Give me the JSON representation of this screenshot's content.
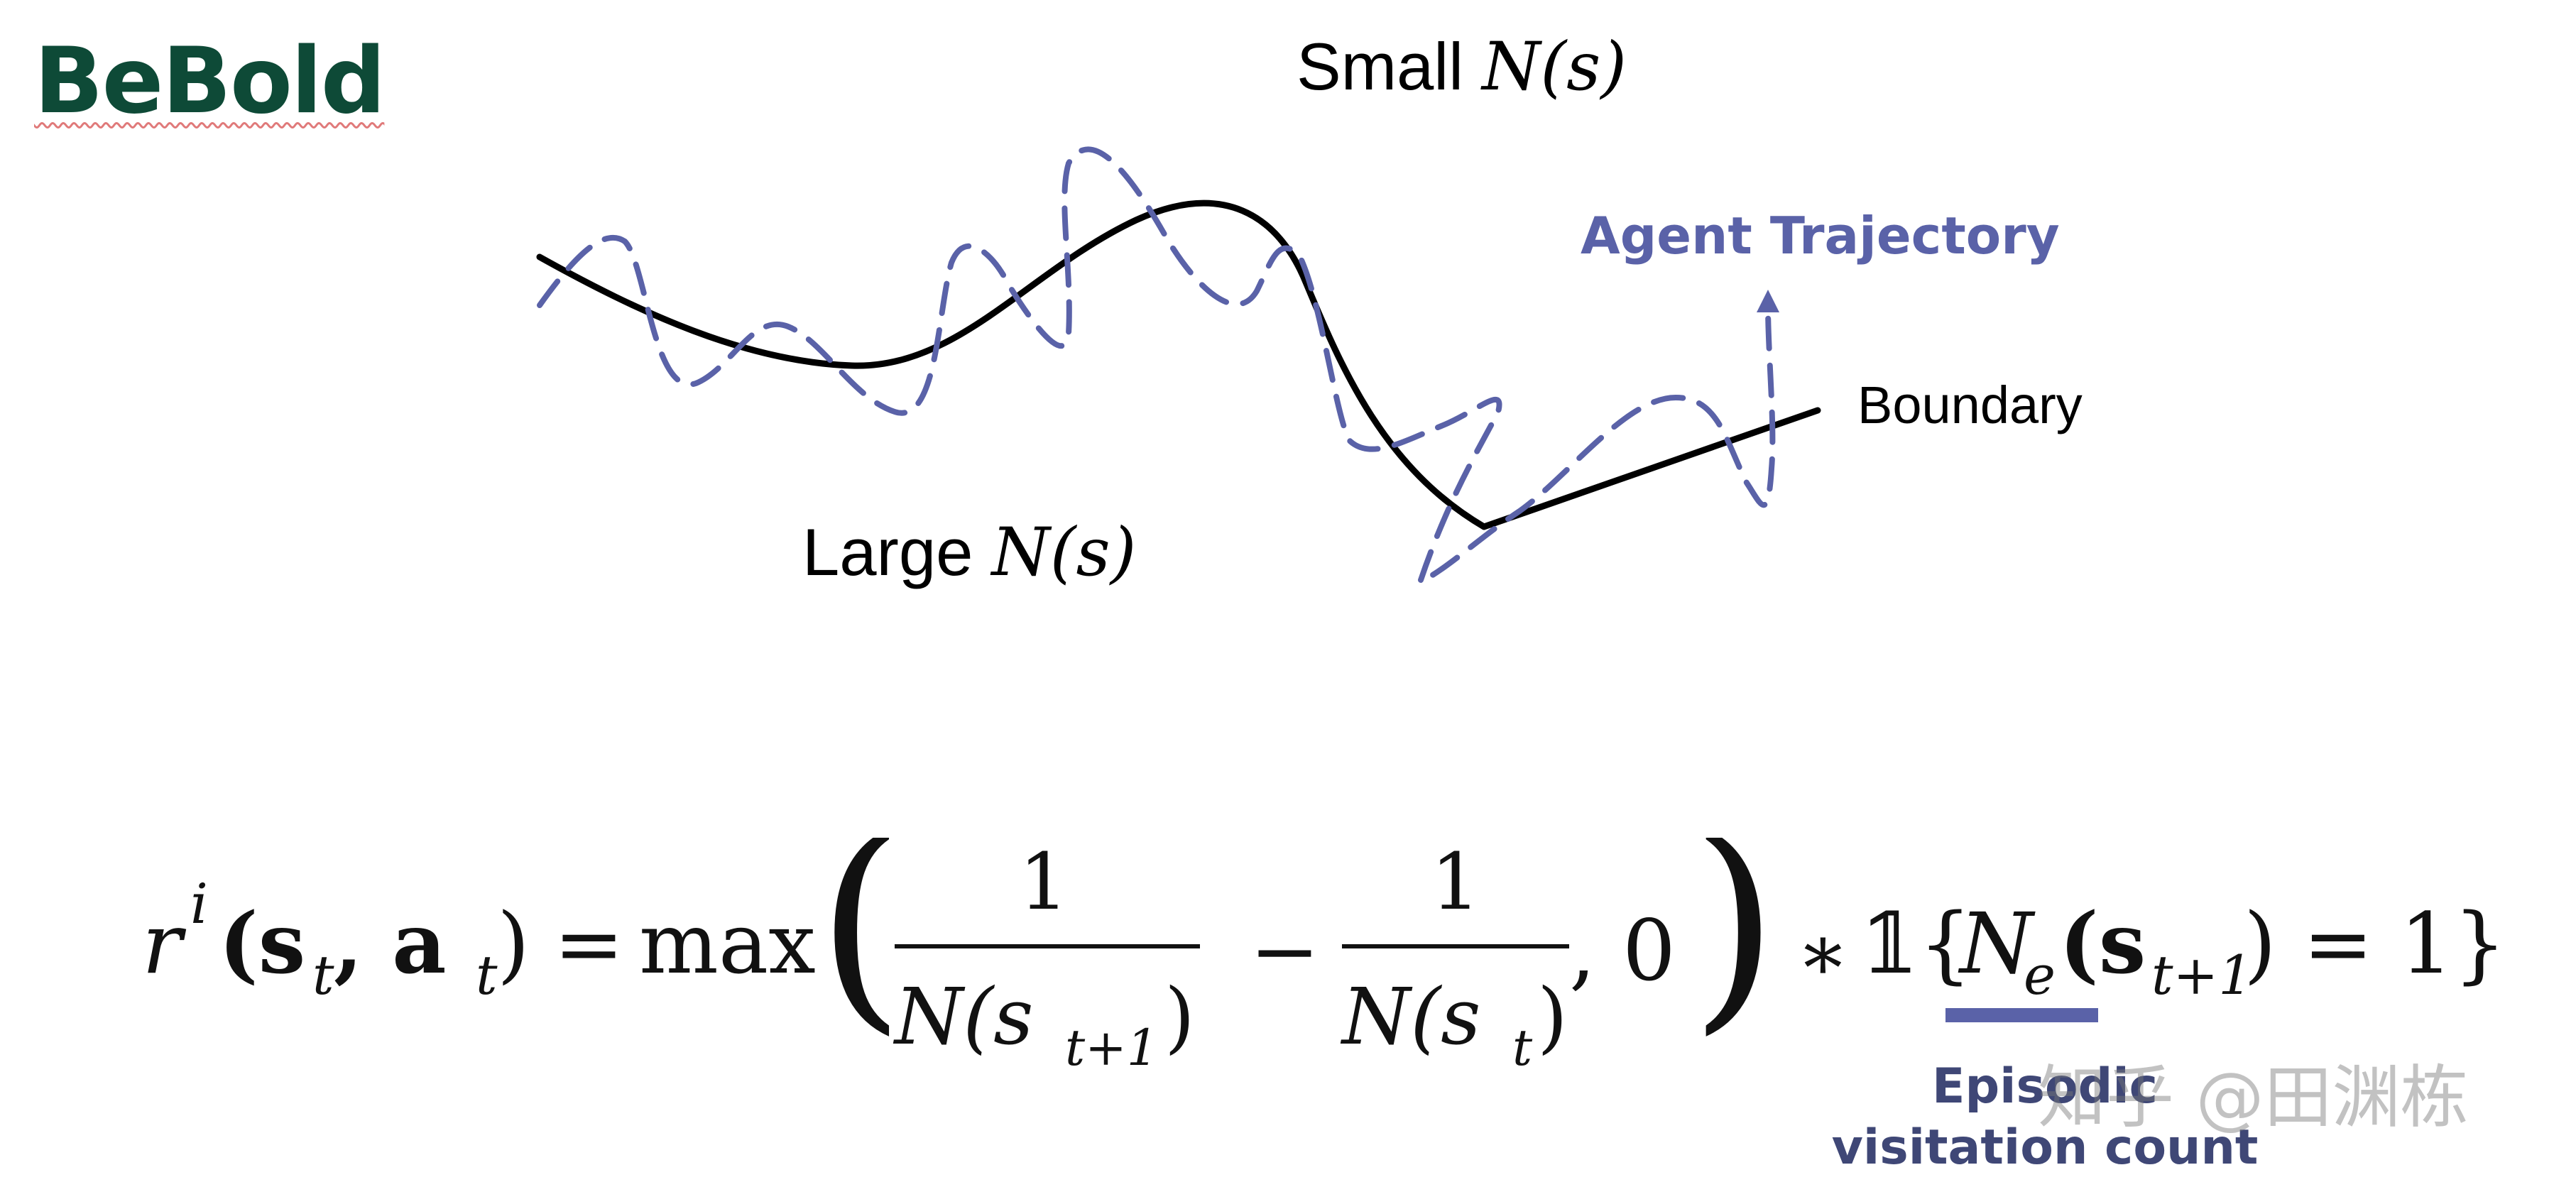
{
  "title": "BeBold",
  "labels": {
    "small_prefix": "Small ",
    "small_math": "N(s)",
    "large_prefix": "Large ",
    "large_math": "N(s)",
    "agent_trajectory": "Agent Trajectory",
    "boundary": "Boundary"
  },
  "formula": {
    "r": "r",
    "r_sup": "i",
    "lhs_args": "(s",
    "lhs_t": "t",
    "lhs_comma": ", a",
    "lhs_t2": "t",
    "lhs_close": ")",
    "equals": "=",
    "max": "max",
    "frac1_num": "1",
    "frac1_den": "N(s",
    "frac1_den_sub": "t+1",
    "frac1_den_close": ")",
    "minus": "−",
    "frac2_num": "1",
    "frac2_den": "N(s",
    "frac2_den_sub": "t",
    "frac2_den_close": ")",
    "tail": ", 0",
    "times": "∗",
    "indicator": "𝟙{",
    "ne": "N",
    "ne_sub": "e",
    "ne_args": "(s",
    "ne_args_sub": "t+1",
    "ne_rest": ") = 1}"
  },
  "annotation": {
    "line1": "Episodic",
    "line2": "visitation count"
  },
  "watermark": "知乎 @田渊栋",
  "colors": {
    "title": "#0e4a37",
    "trajectory": "#5a62a8",
    "boundary": "#000000",
    "annotation": "#3f4776"
  }
}
